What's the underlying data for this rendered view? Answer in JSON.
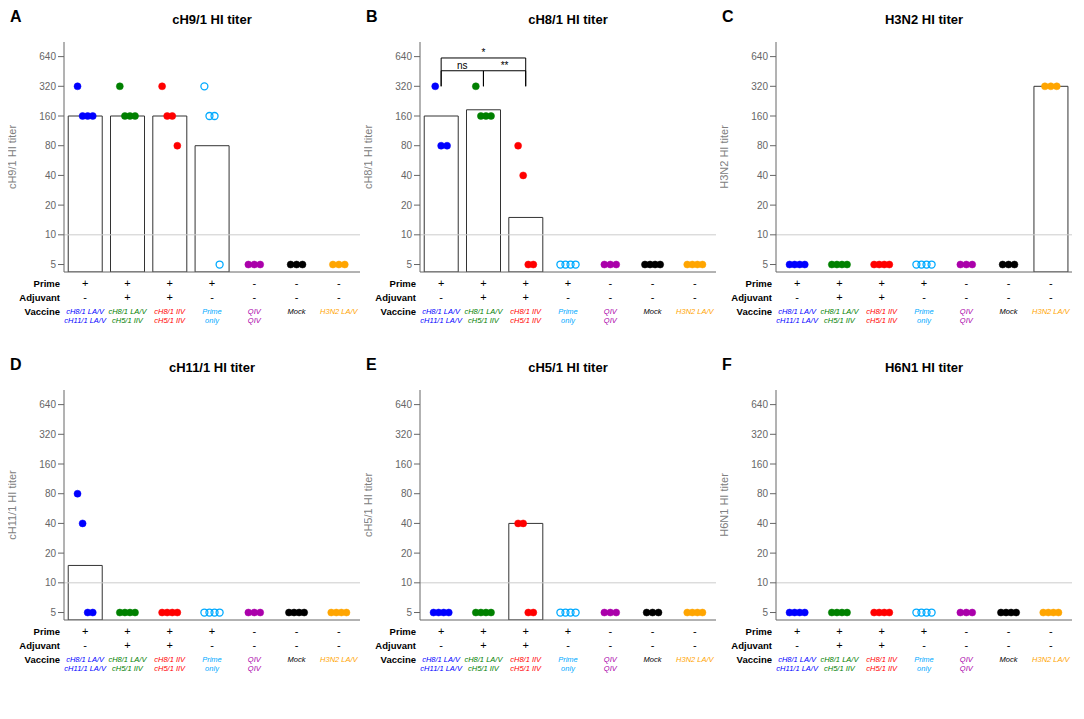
{
  "chart_data": [
    {
      "type": "bar",
      "title": "cH9/1 HI titer",
      "panel_label": "A",
      "y_label": "cH9/1 HI titer",
      "categories": [
        null,
        null,
        null,
        null,
        null,
        null,
        null
      ],
      "log": "y",
      "ylim": [
        4.2,
        900
      ],
      "yticks": [
        5,
        10,
        20,
        40,
        80,
        160,
        320,
        640
      ],
      "hline": 10,
      "series": [
        {
          "type": "bar",
          "color": "#ffffff",
          "values": [
            160,
            160,
            160,
            80,
            null,
            null,
            null
          ]
        },
        {
          "type": "scatter",
          "marker": "filled",
          "colors": [
            "#0000FF",
            "#008000",
            "#FF0000",
            null,
            "#AA00AA",
            "#000000",
            "#FFA500"
          ],
          "values": [
            [
              320,
              160,
              160,
              160
            ],
            [
              320,
              160,
              160,
              160
            ],
            [
              320,
              160,
              160,
              80
            ],
            null,
            [
              5,
              5,
              5
            ],
            [
              5,
              5,
              5
            ],
            [
              5,
              5,
              5
            ]
          ]
        },
        {
          "type": "scatter",
          "marker": "open",
          "colors": [
            null,
            null,
            null,
            "#00AAFF",
            null,
            null,
            null
          ],
          "values": [
            null,
            null,
            null,
            [
              320,
              160,
              160,
              5
            ],
            null,
            null,
            null
          ]
        }
      ],
      "annotation_rows": [
        {
          "label": "Prime",
          "texts": [
            "+",
            "+",
            "+",
            "+",
            "-",
            "-",
            "-"
          ]
        },
        {
          "label": "Adjuvant",
          "texts": [
            "-",
            "+",
            "+",
            "-",
            "-",
            "-",
            "-"
          ]
        },
        {
          "label": "Vaccine",
          "texts": [
            "cH8/1 LA/V",
            "cH8/1 LA/V",
            "cH8/1 IIV",
            "Prime",
            "QIV",
            "Mock",
            "H3N2 LA/V"
          ],
          "texts_line2": [
            "cH11/1 LA/V",
            "cH5/1 IIV",
            "cH5/1 IIV",
            "only",
            "QIV",
            null,
            null
          ],
          "colors": [
            "#0000FF",
            "#008000",
            "#FF0000",
            "#00AAFF",
            "#AA00AA",
            "#000000",
            "#FFA500"
          ]
        }
      ]
    },
    {
      "type": "bar",
      "title": "cH8/1 HI titer",
      "panel_label": "B",
      "y_label": "cH8/1 HI titer",
      "categories": [
        null,
        null,
        null,
        null,
        null,
        null,
        null
      ],
      "log": "y",
      "ylim": [
        4.2,
        900
      ],
      "yticks": [
        5,
        10,
        20,
        40,
        80,
        160,
        320,
        640
      ],
      "hline": 10,
      "series": [
        {
          "type": "bar",
          "color": "#ffffff",
          "values": [
            160,
            185,
            15,
            null,
            null,
            null,
            null
          ]
        },
        {
          "type": "scatter",
          "marker": "filled",
          "colors": [
            "#0000FF",
            "#008000",
            "#FF0000",
            null,
            "#AA00AA",
            "#000000",
            "#FFA500"
          ],
          "values": [
            [
              320,
              80,
              80
            ],
            [
              320,
              160,
              160,
              160
            ],
            [
              80,
              40,
              5,
              5
            ],
            null,
            [
              5,
              5,
              5
            ],
            [
              5,
              5,
              5,
              5
            ],
            [
              5,
              5,
              5,
              5
            ]
          ]
        },
        {
          "type": "scatter",
          "marker": "open",
          "colors": [
            null,
            null,
            null,
            "#00AAFF",
            null,
            null,
            null
          ],
          "values": [
            null,
            null,
            null,
            [
              5,
              5,
              5,
              5
            ],
            null,
            null,
            null
          ]
        }
      ],
      "brackets": [
        {
          "from": 0,
          "to": 2,
          "y": 620,
          "base": 320,
          "label": "*"
        },
        {
          "from": 0,
          "to": 1,
          "y": 460,
          "base": 320,
          "label": "ns"
        },
        {
          "from": 1,
          "to": 2,
          "y": 460,
          "base": 320,
          "label": "**"
        }
      ],
      "annotation_rows": [
        {
          "label": "Prime",
          "texts": [
            "+",
            "+",
            "+",
            "+",
            "-",
            "-",
            "-"
          ]
        },
        {
          "label": "Adjuvant",
          "texts": [
            "-",
            "+",
            "+",
            "-",
            "-",
            "-",
            "-"
          ]
        },
        {
          "label": "Vaccine",
          "texts": [
            "cH8/1 LA/V",
            "cH8/1 LA/V",
            "cH8/1 IIV",
            "Prime",
            "QIV",
            "Mock",
            "H3N2 LA/V"
          ],
          "texts_line2": [
            "cH11/1 LA/V",
            "cH5/1 IIV",
            "cH5/1 IIV",
            "only",
            "QIV",
            null,
            null
          ],
          "colors": [
            "#0000FF",
            "#008000",
            "#FF0000",
            "#00AAFF",
            "#AA00AA",
            "#000000",
            "#FFA500"
          ]
        }
      ]
    },
    {
      "type": "bar",
      "title": "H3N2 HI titer",
      "panel_label": "C",
      "y_label": "H3N2 HI titer",
      "categories": [
        null,
        null,
        null,
        null,
        null,
        null,
        null
      ],
      "log": "y",
      "ylim": [
        4.2,
        900
      ],
      "yticks": [
        5,
        10,
        20,
        40,
        80,
        160,
        320,
        640
      ],
      "hline": 10,
      "series": [
        {
          "type": "bar",
          "color": "#ffffff",
          "values": [
            null,
            null,
            null,
            null,
            null,
            null,
            320
          ]
        },
        {
          "type": "scatter",
          "marker": "filled",
          "colors": [
            "#0000FF",
            "#008000",
            "#FF0000",
            null,
            "#AA00AA",
            "#000000",
            "#FFA500"
          ],
          "values": [
            [
              5,
              5,
              5,
              5
            ],
            [
              5,
              5,
              5,
              5
            ],
            [
              5,
              5,
              5,
              5
            ],
            null,
            [
              5,
              5,
              5
            ],
            [
              5,
              5,
              5
            ],
            [
              320,
              320,
              320
            ]
          ]
        },
        {
          "type": "scatter",
          "marker": "open",
          "colors": [
            null,
            null,
            null,
            "#00AAFF",
            null,
            null,
            null
          ],
          "values": [
            null,
            null,
            null,
            [
              5,
              5,
              5,
              5
            ],
            null,
            null,
            null
          ]
        }
      ],
      "annotation_rows": [
        {
          "label": "Prime",
          "texts": [
            "+",
            "+",
            "+",
            "+",
            "-",
            "-",
            "-"
          ]
        },
        {
          "label": "Adjuvant",
          "texts": [
            "-",
            "+",
            "+",
            "-",
            "-",
            "-",
            "-"
          ]
        },
        {
          "label": "Vaccine",
          "texts": [
            "cH8/1 LA/V",
            "cH8/1 LA/V",
            "cH8/1 IIV",
            "Prime",
            "QIV",
            "Mock",
            "H3N2 LA/V"
          ],
          "texts_line2": [
            "cH11/1 LA/V",
            "cH5/1 IIV",
            "cH5/1 IIV",
            "only",
            "QIV",
            null,
            null
          ],
          "colors": [
            "#0000FF",
            "#008000",
            "#FF0000",
            "#00AAFF",
            "#AA00AA",
            "#000000",
            "#FFA500"
          ]
        }
      ]
    },
    {
      "type": "bar",
      "title": "cH11/1 HI titer",
      "panel_label": "D",
      "y_label": "cH11/1 HI titer",
      "categories": [
        null,
        null,
        null,
        null,
        null,
        null,
        null
      ],
      "log": "y",
      "ylim": [
        4.2,
        900
      ],
      "yticks": [
        5,
        10,
        20,
        40,
        80,
        160,
        320,
        640
      ],
      "hline": 10,
      "series": [
        {
          "type": "bar",
          "color": "#ffffff",
          "values": [
            15,
            null,
            null,
            null,
            null,
            null,
            null
          ]
        },
        {
          "type": "scatter",
          "marker": "filled",
          "colors": [
            "#0000FF",
            "#008000",
            "#FF0000",
            null,
            "#AA00AA",
            "#000000",
            "#FFA500"
          ],
          "values": [
            [
              80,
              40,
              5,
              5
            ],
            [
              5,
              5,
              5,
              5
            ],
            [
              5,
              5,
              5,
              5
            ],
            null,
            [
              5,
              5,
              5
            ],
            [
              5,
              5,
              5,
              5
            ],
            [
              5,
              5,
              5,
              5
            ]
          ]
        },
        {
          "type": "scatter",
          "marker": "open",
          "colors": [
            null,
            null,
            null,
            "#00AAFF",
            null,
            null,
            null
          ],
          "values": [
            null,
            null,
            null,
            [
              5,
              5,
              5,
              5
            ],
            null,
            null,
            null
          ]
        }
      ],
      "annotation_rows": [
        {
          "label": "Prime",
          "texts": [
            "+",
            "+",
            "+",
            "+",
            "-",
            "-",
            "-"
          ]
        },
        {
          "label": "Adjuvant",
          "texts": [
            "-",
            "+",
            "+",
            "-",
            "-",
            "-",
            "-"
          ]
        },
        {
          "label": "Vaccine",
          "texts": [
            "cH8/1 LA/V",
            "cH8/1 LA/V",
            "cH8/1 IIV",
            "Prime",
            "QIV",
            "Mock",
            "H3N2 LA/V"
          ],
          "texts_line2": [
            "cH11/1 LA/V",
            "cH5/1 IIV",
            "cH5/1 IIV",
            "only",
            "QIV",
            null,
            null
          ],
          "colors": [
            "#0000FF",
            "#008000",
            "#FF0000",
            "#00AAFF",
            "#AA00AA",
            "#000000",
            "#FFA500"
          ]
        }
      ]
    },
    {
      "type": "bar",
      "title": "cH5/1 HI titer",
      "panel_label": "E",
      "y_label": "cH5/1 HI titer",
      "categories": [
        null,
        null,
        null,
        null,
        null,
        null,
        null
      ],
      "log": "y",
      "ylim": [
        4.2,
        900
      ],
      "yticks": [
        5,
        10,
        20,
        40,
        80,
        160,
        320,
        640
      ],
      "hline": 10,
      "series": [
        {
          "type": "bar",
          "color": "#ffffff",
          "values": [
            null,
            null,
            40,
            null,
            null,
            null,
            null
          ]
        },
        {
          "type": "scatter",
          "marker": "filled",
          "colors": [
            "#0000FF",
            "#008000",
            "#FF0000",
            null,
            "#AA00AA",
            "#000000",
            "#FFA500"
          ],
          "values": [
            [
              5,
              5,
              5,
              5
            ],
            [
              5,
              5,
              5,
              5
            ],
            [
              40,
              40,
              5,
              5
            ],
            null,
            [
              5,
              5,
              5
            ],
            [
              5,
              5,
              5
            ],
            [
              5,
              5,
              5,
              5
            ]
          ]
        },
        {
          "type": "scatter",
          "marker": "open",
          "colors": [
            null,
            null,
            null,
            "#00AAFF",
            null,
            null,
            null
          ],
          "values": [
            null,
            null,
            null,
            [
              5,
              5,
              5,
              5
            ],
            null,
            null,
            null
          ]
        }
      ],
      "annotation_rows": [
        {
          "label": "Prime",
          "texts": [
            "+",
            "+",
            "+",
            "+",
            "-",
            "-",
            "-"
          ]
        },
        {
          "label": "Adjuvant",
          "texts": [
            "-",
            "+",
            "+",
            "-",
            "-",
            "-",
            "-"
          ]
        },
        {
          "label": "Vaccine",
          "texts": [
            "cH8/1 LA/V",
            "cH8/1 LA/V",
            "cH8/1 IIV",
            "Prime",
            "QIV",
            "Mock",
            "H3N2 LA/V"
          ],
          "texts_line2": [
            "cH11/1 LA/V",
            "cH5/1 IIV",
            "cH5/1 IIV",
            "only",
            "QIV",
            null,
            null
          ],
          "colors": [
            "#0000FF",
            "#008000",
            "#FF0000",
            "#00AAFF",
            "#AA00AA",
            "#000000",
            "#FFA500"
          ]
        }
      ]
    },
    {
      "type": "bar",
      "title": "H6N1 HI titer",
      "panel_label": "F",
      "y_label": "H6N1 HI titer",
      "categories": [
        null,
        null,
        null,
        null,
        null,
        null,
        null
      ],
      "log": "y",
      "ylim": [
        4.2,
        900
      ],
      "yticks": [
        5,
        10,
        20,
        40,
        80,
        160,
        320,
        640
      ],
      "hline": 10,
      "series": [
        {
          "type": "bar",
          "color": "#ffffff",
          "values": [
            null,
            null,
            null,
            null,
            null,
            null,
            null
          ]
        },
        {
          "type": "scatter",
          "marker": "filled",
          "colors": [
            "#0000FF",
            "#008000",
            "#FF0000",
            null,
            "#AA00AA",
            "#000000",
            "#FFA500"
          ],
          "values": [
            [
              5,
              5,
              5,
              5
            ],
            [
              5,
              5,
              5,
              5
            ],
            [
              5,
              5,
              5,
              5
            ],
            null,
            [
              5,
              5,
              5
            ],
            [
              5,
              5,
              5,
              5
            ],
            [
              5,
              5,
              5,
              5
            ]
          ]
        },
        {
          "type": "scatter",
          "marker": "open",
          "colors": [
            null,
            null,
            null,
            "#00AAFF",
            null,
            null,
            null
          ],
          "values": [
            null,
            null,
            null,
            [
              5,
              5,
              5,
              5
            ],
            null,
            null,
            null
          ]
        }
      ],
      "annotation_rows": [
        {
          "label": "Prime",
          "texts": [
            "+",
            "+",
            "+",
            "+",
            "-",
            "-",
            "-"
          ]
        },
        {
          "label": "Adjuvant",
          "texts": [
            "-",
            "+",
            "+",
            "-",
            "-",
            "-",
            "-"
          ]
        },
        {
          "label": "Vaccine",
          "texts": [
            "cH8/1 LA/V",
            "cH8/1 LA/V",
            "cH8/1 IIV",
            "Prime",
            "QIV",
            "Mock",
            "H3N2 LA/V"
          ],
          "texts_line2": [
            "cH11/1 LA/V",
            "cH5/1 IIV",
            "cH5/1 IIV",
            "only",
            "QIV",
            null,
            null
          ],
          "colors": [
            "#0000FF",
            "#008000",
            "#FF0000",
            "#00AAFF",
            "#AA00AA",
            "#000000",
            "#FFA500"
          ]
        }
      ]
    }
  ]
}
